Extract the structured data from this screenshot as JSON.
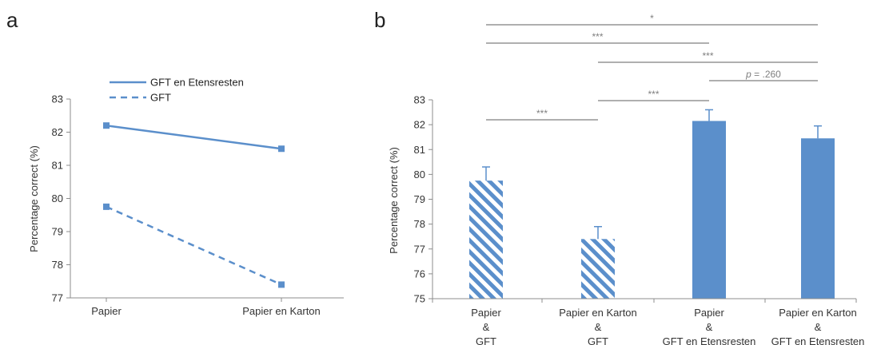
{
  "colors": {
    "series": "#5b8fcb",
    "axis": "#8c8c8c",
    "bracket": "#7f7f7f"
  },
  "chart_data": [
    {
      "panel_label": "a",
      "type": "line",
      "categories": [
        "Papier",
        "Papier en Karton"
      ],
      "series": [
        {
          "name": "GFT en Etensresten",
          "values": [
            82.2,
            81.5
          ],
          "line_style": "solid"
        },
        {
          "name": "GFT",
          "values": [
            79.75,
            77.4
          ],
          "line_style": "dashed"
        }
      ],
      "ylabel": "Percentage correct (%)",
      "ylim": [
        77,
        83
      ],
      "yticks": [
        77,
        78,
        79,
        80,
        81,
        82,
        83
      ],
      "grid": false,
      "legend": "top"
    },
    {
      "panel_label": "b",
      "type": "bar",
      "categories": [
        {
          "lines": [
            "Papier",
            "&",
            "GFT"
          ]
        },
        {
          "lines": [
            "Papier en Karton",
            "&",
            "GFT"
          ]
        },
        {
          "lines": [
            "Papier",
            "&",
            "GFT en Etensresten"
          ]
        },
        {
          "lines": [
            "Papier en Karton",
            "&",
            "GFT en Etensresten"
          ]
        }
      ],
      "values": [
        79.75,
        77.4,
        82.15,
        81.45
      ],
      "errors": [
        0.55,
        0.5,
        0.45,
        0.5
      ],
      "fill_patterns": [
        "hatched",
        "hatched",
        "solid",
        "solid"
      ],
      "ylabel": "Percentage correct (%)",
      "ylim": [
        75,
        83
      ],
      "yticks": [
        75,
        76,
        77,
        78,
        79,
        80,
        81,
        82,
        83
      ],
      "grid": false,
      "significance": [
        {
          "from": 0,
          "to": 3,
          "label": "*"
        },
        {
          "from": 0,
          "to": 2,
          "label": "***"
        },
        {
          "from": 1,
          "to": 3,
          "label": "***"
        },
        {
          "from": 2,
          "to": 3,
          "label_italic": "p",
          "label_rest": " = .260"
        },
        {
          "from": 1,
          "to": 2,
          "label": "***"
        },
        {
          "from": 0,
          "to": 1,
          "label": "***"
        }
      ]
    }
  ]
}
